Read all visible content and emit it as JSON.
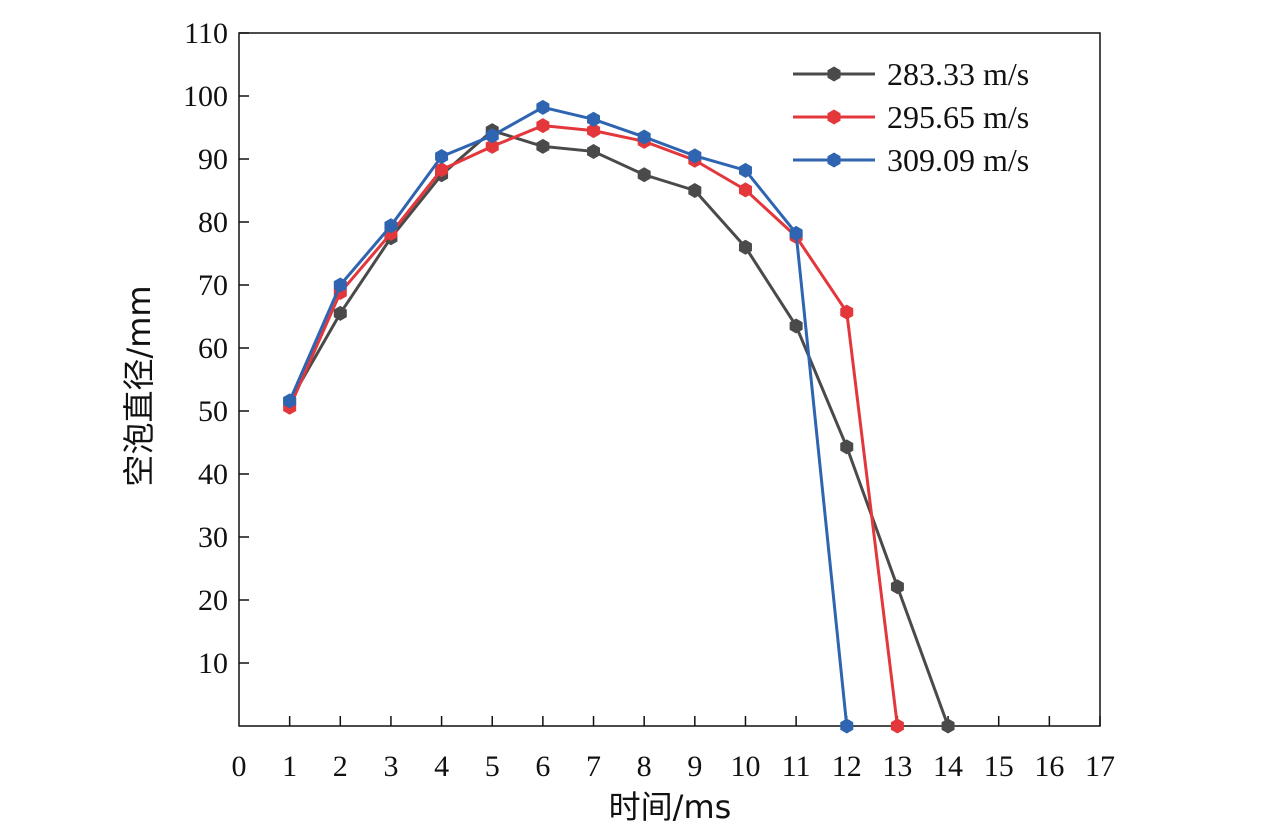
{
  "chart_data": {
    "type": "line",
    "xlabel": "时间/ms",
    "ylabel": "空泡直径/mm",
    "xlim": [
      0,
      17
    ],
    "ylim": [
      0,
      110
    ],
    "x_ticks": [
      0,
      1,
      2,
      3,
      4,
      5,
      6,
      7,
      8,
      9,
      10,
      11,
      12,
      13,
      14,
      15,
      16,
      17
    ],
    "y_ticks": [
      10,
      20,
      30,
      40,
      50,
      60,
      70,
      80,
      90,
      100,
      110
    ],
    "grid": false,
    "legend_position": "top-right",
    "marker": "hexagon",
    "series": [
      {
        "name": "283.33 m/s",
        "color": "#4a4a4a",
        "x": [
          1,
          2,
          3,
          4,
          5,
          6,
          7,
          8,
          9,
          10,
          11,
          12,
          13,
          14
        ],
        "values": [
          51.5,
          65.5,
          77.5,
          87.5,
          94.5,
          92,
          91.2,
          87.5,
          85,
          76,
          63.5,
          44.3,
          22.1,
          0
        ]
      },
      {
        "name": "295.65 m/s",
        "color": "#e3373c",
        "x": [
          1,
          2,
          3,
          4,
          5,
          6,
          7,
          8,
          9,
          10,
          11,
          12,
          13
        ],
        "values": [
          50.6,
          68.8,
          78.2,
          88.3,
          92,
          95.3,
          94.5,
          92.8,
          89.8,
          85.1,
          77.7,
          65.7,
          0
        ]
      },
      {
        "name": "309.09 m/s",
        "color": "#2e64b0",
        "x": [
          1,
          2,
          3,
          4,
          5,
          6,
          7,
          8,
          9,
          10,
          11,
          12
        ],
        "values": [
          51.6,
          70,
          79.4,
          90.4,
          93.7,
          98.2,
          96.3,
          93.5,
          90.5,
          88.2,
          78.2,
          0
        ]
      }
    ]
  }
}
